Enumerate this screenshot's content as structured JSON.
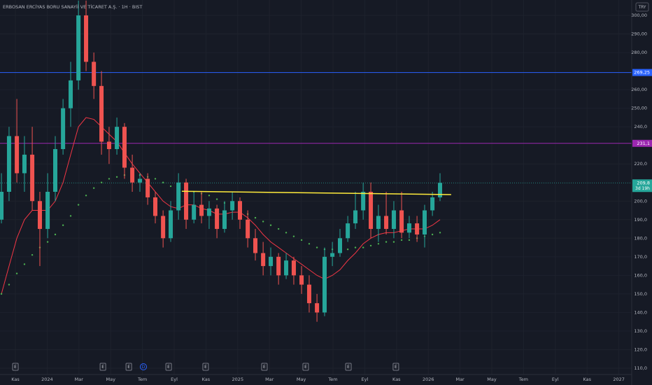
{
  "chart_data": {
    "type": "candlestick",
    "title": "ERBOSAN ERCİYAS BORU SANAYİİ VE TİCARET A.Ş. · 1H · BIST",
    "currency": "TRY",
    "up_color": "#26a69a",
    "down_color": "#ef5350",
    "xlim": [
      -0.97,
      38.81
    ],
    "ylim": [
      106.6,
      308.3
    ],
    "grid": true,
    "xticks": [
      {
        "value": 0,
        "label": "Kas"
      },
      {
        "value": 2,
        "label": "2024"
      },
      {
        "value": 4,
        "label": "Mar"
      },
      {
        "value": 6,
        "label": "May"
      },
      {
        "value": 8,
        "label": "Tem"
      },
      {
        "value": 10,
        "label": "Eyl"
      },
      {
        "value": 12,
        "label": "Kas"
      },
      {
        "value": 14,
        "label": "2025"
      },
      {
        "value": 16,
        "label": "Mar"
      },
      {
        "value": 18,
        "label": "May"
      },
      {
        "value": 20,
        "label": "Tem"
      },
      {
        "value": 22,
        "label": "Eyl"
      },
      {
        "value": 24,
        "label": "Kas"
      },
      {
        "value": 26,
        "label": "2026"
      },
      {
        "value": 28,
        "label": "Mar"
      },
      {
        "value": 30,
        "label": "May"
      },
      {
        "value": 32,
        "label": "Tem"
      },
      {
        "value": 34,
        "label": "Eyl"
      },
      {
        "value": 36,
        "label": "Kas"
      },
      {
        "value": 38,
        "label": "2027"
      }
    ],
    "yticks": [
      {
        "value": 300,
        "label": "300,00"
      },
      {
        "value": 290,
        "label": "290,00"
      },
      {
        "value": 280,
        "label": "280,00"
      },
      {
        "value": 260,
        "label": "260,00"
      },
      {
        "value": 250,
        "label": "250,00"
      },
      {
        "value": 240,
        "label": "240,0"
      },
      {
        "value": 220,
        "label": "220,0"
      },
      {
        "value": 200,
        "label": "200,0"
      },
      {
        "value": 190,
        "label": "190,0"
      },
      {
        "value": 180,
        "label": "180,0"
      },
      {
        "value": 170,
        "label": "170,0"
      },
      {
        "value": 160,
        "label": "160,0"
      },
      {
        "value": 150,
        "label": "150,0"
      },
      {
        "value": 140,
        "label": "140,0"
      },
      {
        "value": 130,
        "label": "130,0"
      },
      {
        "value": 120,
        "label": "120,0"
      },
      {
        "value": 110,
        "label": "110,0"
      }
    ],
    "x": [
      -0.88,
      -0.4,
      0.09,
      0.57,
      1.06,
      1.54,
      2.03,
      2.51,
      3.0,
      3.48,
      3.97,
      4.45,
      4.94,
      5.42,
      5.9,
      6.39,
      6.87,
      7.36,
      7.84,
      8.33,
      8.81,
      9.3,
      9.78,
      10.27,
      10.75,
      11.24,
      11.72,
      12.2,
      12.69,
      13.17,
      13.66,
      14.14,
      14.63,
      15.11,
      15.6,
      16.08,
      16.57,
      17.05,
      17.53,
      18.02,
      18.5,
      18.99,
      19.47,
      19.96,
      20.44,
      20.93,
      21.41,
      21.9,
      22.38,
      22.86,
      23.35,
      23.83,
      24.32,
      24.8,
      25.29,
      25.77,
      26.26,
      26.74
    ],
    "open": [
      190,
      205,
      235,
      215,
      225,
      200,
      185,
      205,
      228,
      250,
      265,
      300,
      275,
      262,
      232,
      228,
      240,
      218,
      210,
      212,
      202,
      192,
      180,
      195,
      210,
      190,
      198,
      192,
      196,
      185,
      195,
      200,
      190,
      180,
      172,
      165,
      170,
      160,
      168,
      160,
      155,
      145,
      140,
      170,
      172,
      180,
      188,
      195,
      205,
      185,
      192,
      185,
      195,
      183,
      188,
      182,
      195,
      202
    ],
    "high": [
      215,
      240,
      255,
      235,
      240,
      205,
      215,
      235,
      255,
      275,
      308,
      308,
      280,
      270,
      240,
      245,
      242,
      225,
      215,
      215,
      205,
      195,
      200,
      215,
      212,
      205,
      205,
      200,
      198,
      200,
      205,
      202,
      195,
      185,
      178,
      175,
      172,
      172,
      170,
      165,
      160,
      150,
      175,
      178,
      185,
      192,
      205,
      210,
      210,
      198,
      205,
      200,
      205,
      192,
      192,
      198,
      205,
      215
    ],
    "low": [
      188,
      200,
      210,
      205,
      195,
      165,
      180,
      200,
      225,
      240,
      260,
      270,
      255,
      225,
      220,
      225,
      212,
      205,
      205,
      198,
      188,
      175,
      178,
      190,
      185,
      188,
      188,
      185,
      180,
      183,
      190,
      185,
      175,
      168,
      160,
      160,
      155,
      158,
      155,
      150,
      140,
      135,
      138,
      165,
      170,
      178,
      185,
      190,
      180,
      178,
      182,
      180,
      180,
      180,
      178,
      175,
      192,
      200
    ],
    "close": [
      205,
      235,
      215,
      225,
      200,
      185,
      205,
      228,
      250,
      265,
      300,
      275,
      262,
      232,
      228,
      240,
      218,
      210,
      212,
      202,
      192,
      180,
      195,
      210,
      190,
      198,
      192,
      196,
      185,
      195,
      200,
      190,
      180,
      172,
      165,
      170,
      160,
      168,
      160,
      155,
      145,
      140,
      170,
      172,
      180,
      188,
      195,
      205,
      185,
      192,
      185,
      195,
      183,
      188,
      182,
      195,
      202,
      209.8
    ],
    "series": [
      {
        "color": "#f23645",
        "style": "line",
        "values": [
          150,
          165,
          180,
          190,
          195,
          195,
          195,
          200,
          210,
          225,
          240,
          245,
          244,
          240,
          236,
          232,
          226,
          220,
          215,
          210,
          205,
          200,
          197,
          196,
          198,
          198,
          196,
          195,
          193,
          193,
          194,
          194,
          191,
          187,
          182,
          178,
          175,
          172,
          169,
          166,
          163,
          160,
          158,
          160,
          163,
          168,
          172,
          177,
          180,
          182,
          183,
          183,
          184,
          185,
          185,
          185,
          187,
          190
        ]
      },
      {
        "color": "#4caf50",
        "style": "dots",
        "values": [
          150,
          155,
          161,
          166,
          171,
          175,
          178,
          182,
          187,
          192,
          198,
          203,
          207,
          210,
          212,
          213,
          214,
          214,
          214,
          213,
          212,
          210,
          208,
          207,
          206,
          205,
          204,
          203,
          201,
          199,
          197,
          195,
          193,
          191,
          189,
          187,
          185,
          183,
          181,
          179,
          177,
          175,
          174,
          174,
          174,
          174,
          175,
          175,
          176,
          177,
          178,
          178,
          179,
          179,
          180,
          181,
          182,
          183
        ]
      }
    ],
    "trendline": {
      "x": [
        10.48,
        27.44
      ],
      "values": [
        205.3,
        203.5
      ],
      "color": "#ffeb3b"
    },
    "hlines": [
      {
        "value": 269.25,
        "label": "269,25",
        "color": "#2962ff"
      },
      {
        "value": 231.1,
        "label": "231,1",
        "color": "#9c27b0"
      }
    ],
    "last_price": {
      "value": 209.8,
      "label": "209,8",
      "countdown": "3d 19h",
      "color": "#26a69a"
    },
    "events": [
      {
        "x": 0,
        "label": "E"
      },
      {
        "x": 5.51,
        "label": "E"
      },
      {
        "x": 7.14,
        "label": "E"
      },
      {
        "x": 8.06,
        "label": "D"
      },
      {
        "x": 9.65,
        "label": "E"
      },
      {
        "x": 11.98,
        "label": "E"
      },
      {
        "x": 15.68,
        "label": "E"
      },
      {
        "x": 18.28,
        "label": "E"
      },
      {
        "x": 20.97,
        "label": "E"
      },
      {
        "x": 23.96,
        "label": "E"
      }
    ]
  }
}
